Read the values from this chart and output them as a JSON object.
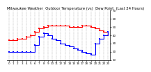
{
  "title": "Milwaukee Weather  Outdoor Temperature (vs)  Dew Point  (Last 24 Hours)",
  "bg_color": "#ffffff",
  "plot_bg_color": "#ffffff",
  "grid_color": "#888888",
  "temp_color": "#ff0000",
  "dew_color": "#0000ff",
  "ylim": [
    10,
    70
  ],
  "yticks": [
    10,
    20,
    30,
    40,
    50,
    60,
    70
  ],
  "ytick_labels": [
    "10",
    "20",
    "30",
    "40",
    "50",
    "60",
    "70"
  ],
  "temp_x": [
    0,
    1,
    2,
    3,
    4,
    5,
    6,
    7,
    8,
    9,
    10,
    11,
    12,
    13,
    14,
    15,
    16,
    17,
    18,
    19,
    20,
    21,
    22,
    23
  ],
  "temp_y": [
    34,
    34,
    36,
    36,
    38,
    40,
    44,
    48,
    50,
    52,
    52,
    52,
    52,
    52,
    50,
    50,
    50,
    52,
    52,
    50,
    48,
    46,
    44,
    40
  ],
  "dew_x": [
    0,
    1,
    2,
    3,
    4,
    5,
    6,
    7,
    8,
    9,
    10,
    11,
    12,
    13,
    14,
    15,
    16,
    17,
    18,
    19,
    20,
    21,
    22,
    23
  ],
  "dew_y": [
    20,
    20,
    20,
    20,
    20,
    20,
    28,
    38,
    42,
    40,
    36,
    34,
    30,
    28,
    26,
    24,
    22,
    20,
    18,
    16,
    30,
    36,
    40,
    44
  ],
  "n_xticks": 24,
  "title_fontsize": 3.8,
  "tick_fontsize": 3.0,
  "linewidth": 0.8,
  "markersize": 1.5
}
